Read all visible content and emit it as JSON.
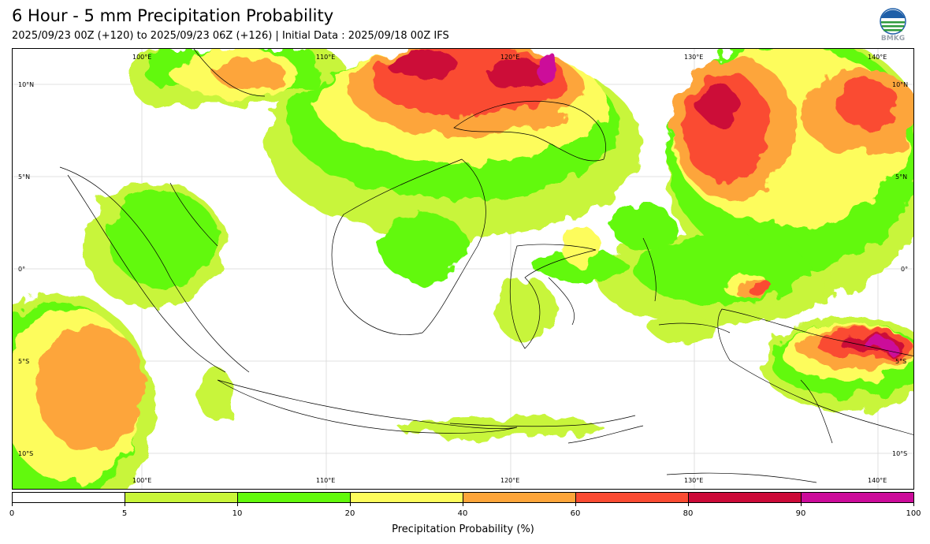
{
  "header": {
    "title": "6 Hour - 5 mm Precipitation Probability",
    "subtitle": "2025/09/23 00Z (+120) to 2025/09/23 06Z (+126) | Initial Data : 2025/09/18 00Z IFS"
  },
  "logo": {
    "text": "BMKG",
    "icon": "bmkg-logo-icon"
  },
  "map": {
    "lon_labels": [
      "100°E",
      "110°E",
      "120°E",
      "130°E",
      "140°E"
    ],
    "lat_labels": [
      "10°N",
      "5°N",
      "0°",
      "5°S",
      "10°S"
    ]
  },
  "colorbar": {
    "title": "Precipitation Probability (%)",
    "ticks": [
      "0",
      "5",
      "10",
      "20",
      "40",
      "60",
      "80",
      "90",
      "100"
    ],
    "colors": [
      "#ffffff",
      "#c8f53a",
      "#62f90c",
      "#fdfc5c",
      "#fda53a",
      "#fa4b32",
      "#cc0a38",
      "#cc0b9a"
    ]
  }
}
